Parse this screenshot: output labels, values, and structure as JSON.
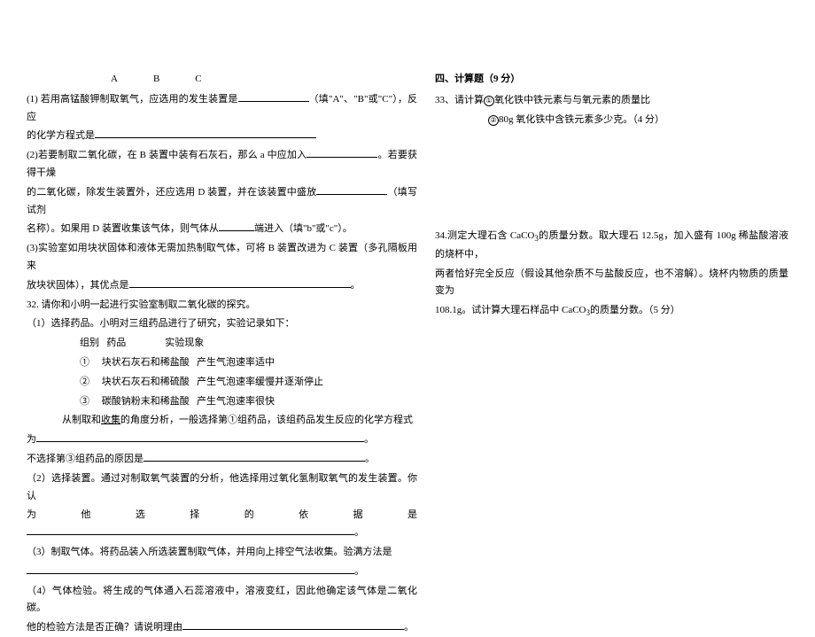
{
  "left": {
    "labels": "ABC",
    "q1": "(1) 若用高锰酸钾制取氧气，应选用的发生装置是",
    "q1_hint": "（填\"A\"、\"B\"或\"C\"），反应",
    "q1_cont": "的化学方程式是",
    "q2": "(2)若要制取二氧化碳，在 B 装置中装有石灰石，那么 a 中应加入",
    "q2_hint": "。若要获得干燥",
    "q2_cont": "的二氧化碳，除发生装置外，还应选用 D 装置，并在该装置中盛放",
    "q2_hint2": "（填写试剂",
    "q2_cont2": "名称）。如果用 D 装置收集该气体，则气体从",
    "q2_hint3": "端进入（填\"b\"或\"c\"）。",
    "q3": "(3)实验室如用块状固体和液体无需加热制取气体，可将 B 装置改进为 C 装置（多孔隔板用来",
    "q3_cont": "放块状固体），其优点是",
    "q32": "32. 请你和小明一起进行实验室制取二氧化碳的探究。",
    "q32_1": "（1）选择药品。小明对三组药品进行了研究，实验记录如下：",
    "table_h1": "组别",
    "table_h2": "药品",
    "table_h3": "实验现象",
    "row1_a": "①",
    "row1_b": "块状石灰石和稀盐酸",
    "row1_c": "产生气泡速率适中",
    "row2_a": "②",
    "row2_b": "块状石灰石和稀硫酸",
    "row2_c": "产生气泡速率缓慢并逐渐停止",
    "row3_a": "③",
    "row3_b": "碳酸钠粉末和稀盐酸",
    "row3_c": "产生气泡速率很快",
    "q32_1b": "从制取和",
    "q32_1b_u": "收集",
    "q32_1b2": "的角度分析，一般选择第①组药品，该组药品发生反应的化学方程式",
    "q32_1b3": "为",
    "q32_1c": "不选择第③组药品的原因是",
    "q32_2": "（2）选择装置。通过对制取氧气装置的分析，他选择用过氧化氢制取氧气的发生装置。你认",
    "q32_2b": "为他选择的依据是",
    "q32_3": "（3）制取气体。将药品装入所选装置制取气体，并用向上排空气法收集。验满方法是",
    "q32_4": "（4）气体检验。将生成的气体通入石蕊溶液中，溶液变红，因此他确定该气体是二氧化碳。",
    "q32_4b": "他的检验方法是否正确？请说明理由",
    "period": "。"
  },
  "right": {
    "title": "四、计算题（9 分）",
    "q33": "33、请计算",
    "q33_c1": "①",
    "q33_1": "氧化铁中铁元素与与氧元素的质量比",
    "q33_c2": "②",
    "q33_2": "80g 氧化铁中含铁元素多少克。（4 分）",
    "q34_a": "34.测定大理石含 CaCO",
    "q34_b": "的质量分数。取大理石 12.5g，加入盛有 100g 稀盐酸溶液的烧杯中，",
    "q34_c": "两者恰好完全反应（假设其他杂质不与盐酸反应，也不溶解）。烧杯内物质的质量变为",
    "q34_d": "108.1g。试计算大理石样品中 CaCO",
    "q34_e": "的质量分数。（5 分）",
    "sub3": "3"
  }
}
